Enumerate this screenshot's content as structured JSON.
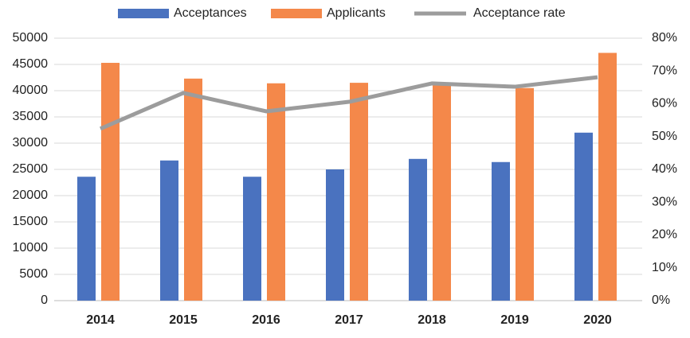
{
  "chart_data": {
    "type": "bar-line",
    "categories": [
      "2014",
      "2015",
      "2016",
      "2017",
      "2018",
      "2019",
      "2020"
    ],
    "series": [
      {
        "name": "Acceptances",
        "color": "#4a72bf",
        "values": [
          23600,
          26700,
          23600,
          25000,
          27000,
          26400,
          32000
        ]
      },
      {
        "name": "Applicants",
        "color": "#f4884a",
        "values": [
          45300,
          42300,
          41400,
          41500,
          41000,
          40500,
          47200
        ]
      },
      {
        "name": "Acceptance rate",
        "color": "#9c9c9c",
        "axis": "y2",
        "values": [
          52.4,
          63.3,
          57.7,
          60.6,
          66.2,
          65.2,
          68.1
        ]
      }
    ],
    "ylim": [
      0,
      50000
    ],
    "yticks": [
      0,
      5000,
      10000,
      15000,
      20000,
      25000,
      30000,
      35000,
      40000,
      45000,
      50000
    ],
    "y2lim": [
      0,
      80
    ],
    "y2ticks": [
      {
        "value": 0,
        "label": "0%"
      },
      {
        "value": 10,
        "label": "10%"
      },
      {
        "value": 20,
        "label": "20%"
      },
      {
        "value": 30,
        "label": "30%"
      },
      {
        "value": 40,
        "label": "40%"
      },
      {
        "value": 50,
        "label": "50%"
      },
      {
        "value": 60,
        "label": "60%"
      },
      {
        "value": 70,
        "label": "70%"
      },
      {
        "value": 80,
        "label": "80%"
      }
    ],
    "grid": true
  }
}
